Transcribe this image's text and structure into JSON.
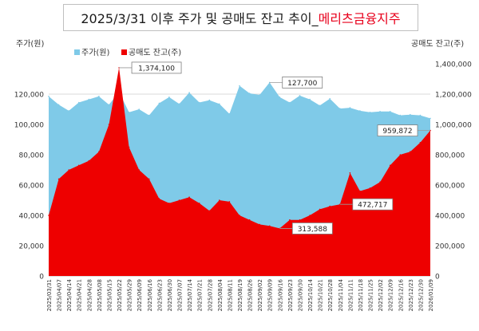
{
  "chart_data": {
    "type": "area",
    "title": "2025/3/31 이후 주가 및 공매도 잔고 추이_",
    "title_company": "메리츠금융지주",
    "ylabel_left": "주가(원)",
    "ylabel_right": "공매도 잔고(주)",
    "ylim_left": [
      0,
      140000
    ],
    "ylim_right": [
      0,
      1400000
    ],
    "yticks_left": [
      "0",
      "20,000",
      "40,000",
      "60,000",
      "80,000",
      "100,000",
      "120,000"
    ],
    "yticks_right": [
      "0",
      "200,000",
      "400,000",
      "600,000",
      "800,000",
      "1,000,000",
      "1,200,000",
      "1,400,000"
    ],
    "legend": "top-left",
    "grid": true,
    "x": [
      "2025/03/31",
      "2025/04/07",
      "2025/04/14",
      "2025/04/21",
      "2025/04/28",
      "2025/05/08",
      "2025/05/15",
      "2025/05/22",
      "2025/05/29",
      "2025/06/09",
      "2025/06/16",
      "2025/06/23",
      "2025/06/30",
      "2025/07/07",
      "2025/07/14",
      "2025/07/21",
      "2025/07/28",
      "2025/08/04",
      "2025/08/11",
      "2025/08/19",
      "2025/08/26",
      "2025/09/02",
      "2025/09/09",
      "2025/09/16",
      "2025/09/23",
      "2025/09/30",
      "2025/10/14",
      "2025/10/21",
      "2025/10/28",
      "2025/11/04",
      "2025/11/11",
      "2025/11/18",
      "2025/11/25",
      "2025/12/02",
      "2025/12/09",
      "2025/12/16",
      "2025/12/23",
      "2025/12/30",
      "2026/01/09"
    ],
    "series": [
      {
        "name": "주가(원)",
        "axis": "left",
        "color": "#7fcae8",
        "values": [
          118500,
          113000,
          109000,
          114500,
          116500,
          118500,
          113000,
          121500,
          108000,
          110000,
          106000,
          114000,
          118000,
          113500,
          121000,
          114500,
          116000,
          113500,
          107000,
          125500,
          120500,
          119500,
          127700,
          118000,
          114500,
          119000,
          116500,
          112500,
          117000,
          110500,
          111000,
          109000,
          108000,
          108500,
          108500,
          106000,
          106500,
          106000,
          104000
        ]
      },
      {
        "name": "공매도 잔고(주)",
        "axis": "right",
        "color": "#ee0000",
        "values": [
          400000,
          640000,
          700000,
          730000,
          760000,
          820000,
          1000000,
          1374100,
          850000,
          700000,
          640000,
          510000,
          480000,
          500000,
          520000,
          480000,
          430000,
          500000,
          490000,
          400000,
          370000,
          340000,
          330000,
          313588,
          370000,
          370000,
          400000,
          440000,
          460000,
          472717,
          680000,
          560000,
          580000,
          620000,
          730000,
          800000,
          820000,
          880000,
          959872
        ]
      }
    ],
    "callouts": [
      {
        "text": "1,374,100",
        "series": 1,
        "index": 7
      },
      {
        "text": "127,700",
        "series": 0,
        "index": 22
      },
      {
        "text": "313,588",
        "series": 1,
        "index": 23
      },
      {
        "text": "472,717",
        "series": 1,
        "index": 29
      },
      {
        "text": "959,872",
        "series": 1,
        "index": 38
      }
    ]
  }
}
